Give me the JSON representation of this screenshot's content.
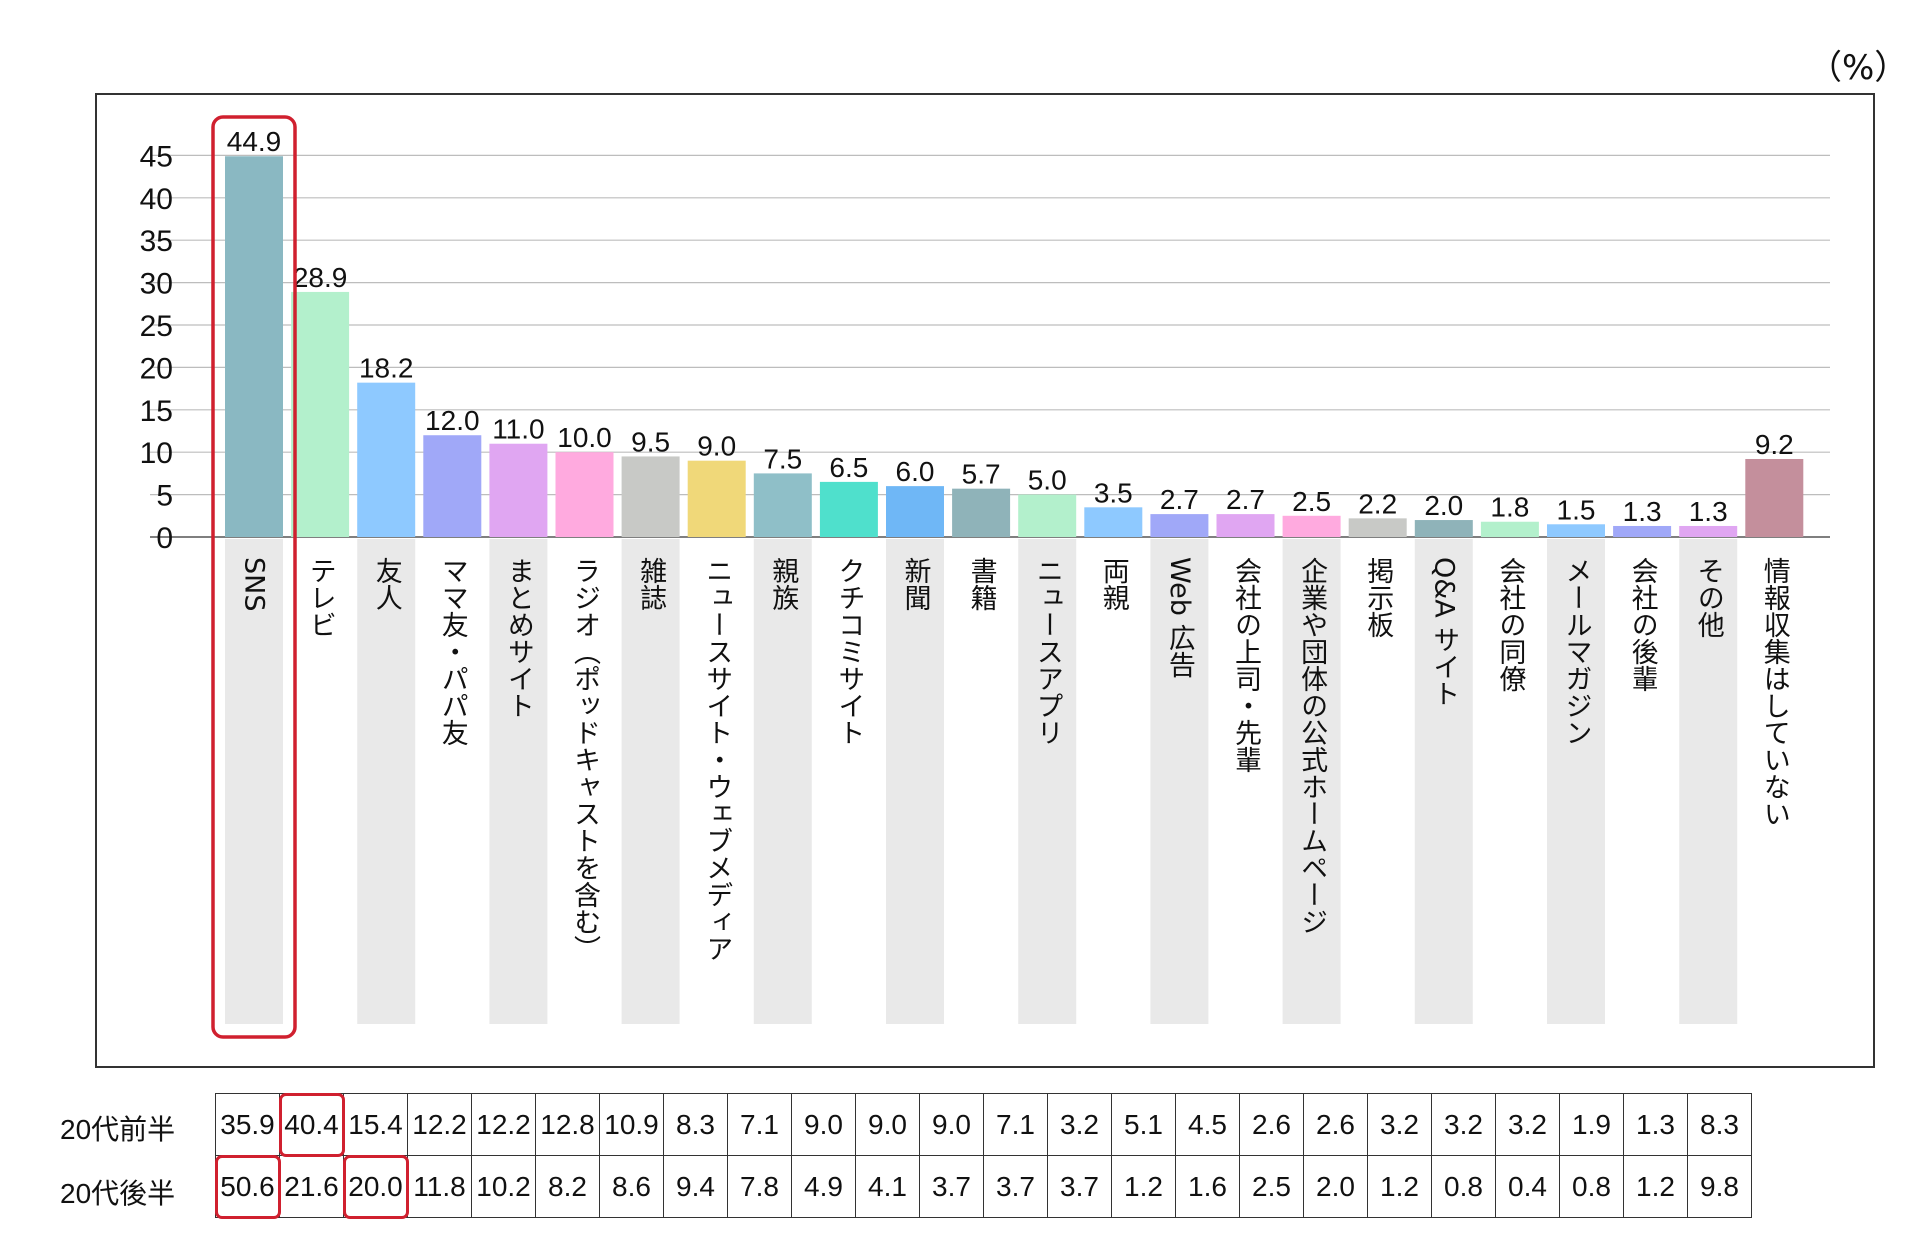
{
  "unit_label": "（%）",
  "chart_data": {
    "type": "bar",
    "ylim": [
      0,
      45
    ],
    "yticks": [
      "0",
      "5",
      "10",
      "15",
      "20",
      "25",
      "30",
      "35",
      "40",
      "45"
    ],
    "grid": true,
    "categories": [
      "SNS",
      "テレビ",
      "友人",
      "ママ友・パパ友",
      "まとめサイト",
      "ラジオ（ポッドキャストを含む）",
      "雑誌",
      "ニュースサイト・ウェブメディア",
      "親族",
      "クチコミサイト",
      "新聞",
      "書籍",
      "ニュースアプリ",
      "両親",
      "Web 広告",
      "会社の上司・先輩",
      "企業や団体の公式ホームページ",
      "掲示板",
      "Q&A サイト",
      "会社の同僚",
      "メールマガジン",
      "会社の後輩",
      "その他",
      "情報収集はしていない"
    ],
    "values": [
      44.9,
      28.9,
      18.2,
      12.0,
      11.0,
      10.0,
      9.5,
      9.0,
      7.5,
      6.5,
      6.0,
      5.7,
      5.0,
      3.5,
      2.7,
      2.7,
      2.5,
      2.2,
      2.0,
      1.8,
      1.5,
      1.3,
      1.3,
      9.2
    ],
    "value_labels": [
      "44.9",
      "28.9",
      "18.2",
      "12.0",
      "11.0",
      "10.0",
      "9.5",
      "9.0",
      "7.5",
      "6.5",
      "6.0",
      "5.7",
      "5.0",
      "3.5",
      "2.7",
      "2.7",
      "2.5",
      "2.2",
      "2.0",
      "1.8",
      "1.5",
      "1.3",
      "1.3",
      "9.2"
    ],
    "colors": [
      "#8ab8c2",
      "#b3f0cc",
      "#8ec9ff",
      "#a0a8f8",
      "#e0a6f2",
      "#ffaadf",
      "#c8c9c6",
      "#f0d879",
      "#8fbfc8",
      "#4fe0cc",
      "#6fb7f6",
      "#8fb3b9",
      "#b3f0cc",
      "#8ec9ff",
      "#a0a8f8",
      "#e0a6f2",
      "#ffaadf",
      "#c8c9c6",
      "#8fb3b9",
      "#b3f0cc",
      "#8ec9ff",
      "#a0a8f8",
      "#e0a6f2",
      "#c48f9c"
    ],
    "highlight_color": "#d0202f",
    "highlighted_bar": "SNS"
  },
  "table": {
    "rows": [
      {
        "label": "20代前半",
        "values": [
          "35.9",
          "40.4",
          "15.4",
          "12.2",
          "12.2",
          "12.8",
          "10.9",
          "8.3",
          "7.1",
          "9.0",
          "9.0",
          "9.0",
          "7.1",
          "3.2",
          "5.1",
          "4.5",
          "2.6",
          "2.6",
          "3.2",
          "3.2",
          "3.2",
          "1.9",
          "1.3",
          "8.3"
        ],
        "highlight": [
          1
        ]
      },
      {
        "label": "20代後半",
        "values": [
          "50.6",
          "21.6",
          "20.0",
          "11.8",
          "10.2",
          "8.2",
          "8.6",
          "9.4",
          "7.8",
          "4.9",
          "4.1",
          "3.7",
          "3.7",
          "3.7",
          "1.2",
          "1.6",
          "2.5",
          "2.0",
          "1.2",
          "0.8",
          "0.4",
          "0.8",
          "1.2",
          "9.8"
        ],
        "highlight": [
          0,
          2
        ]
      }
    ]
  }
}
